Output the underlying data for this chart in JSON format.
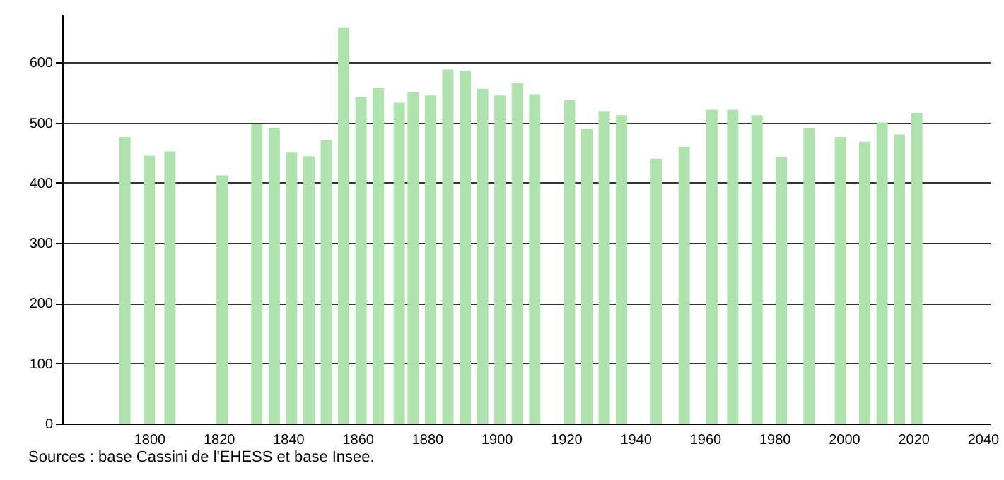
{
  "chart_data": {
    "type": "bar",
    "x": [
      1793,
      1800,
      1806,
      1821,
      1831,
      1836,
      1841,
      1846,
      1851,
      1856,
      1861,
      1866,
      1872,
      1876,
      1881,
      1886,
      1891,
      1896,
      1901,
      1906,
      1911,
      1921,
      1926,
      1931,
      1936,
      1946,
      1954,
      1962,
      1968,
      1975,
      1982,
      1990,
      1999,
      2006,
      2011,
      2016,
      2021
    ],
    "values": [
      476,
      445,
      452,
      412,
      498,
      491,
      450,
      444,
      470,
      658,
      542,
      557,
      533,
      550,
      545,
      588,
      586,
      556,
      545,
      565,
      547,
      537,
      489,
      519,
      512,
      440,
      460,
      521,
      521,
      512,
      442,
      490,
      476,
      468,
      500,
      480,
      516
    ],
    "color": "#aee3ae",
    "xlim": [
      1777,
      2040
    ],
    "xticks": [
      1800,
      1820,
      1840,
      1860,
      1880,
      1900,
      1920,
      1940,
      1960,
      1980,
      2000,
      2020,
      2040
    ],
    "ylim": [
      0,
      680
    ],
    "yticks": [
      0,
      100,
      200,
      300,
      400,
      500,
      600
    ],
    "grid": "y",
    "annotations": [
      "Sources : base Cassini de l'EHESS et base Insee."
    ]
  }
}
